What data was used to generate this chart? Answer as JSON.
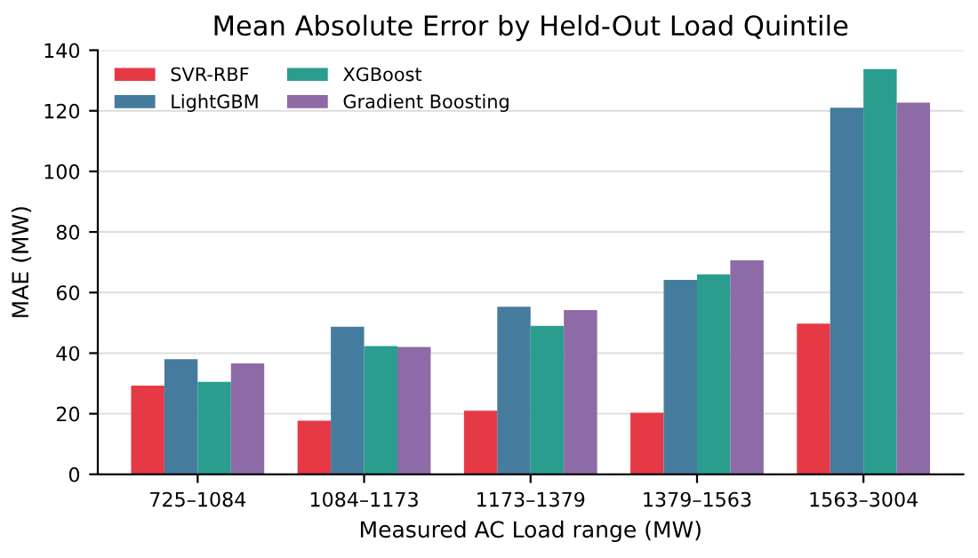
{
  "chart_data": {
    "type": "bar",
    "title": "Mean Absolute Error by Held-Out Load Quintile",
    "xlabel": "Measured AC Load range (MW)",
    "ylabel": "MAE (MW)",
    "categories": [
      "725–1084",
      "1084–1173",
      "1173–1379",
      "1379–1563",
      "1563–3004"
    ],
    "series": [
      {
        "name": "SVR-RBF",
        "color": "#e63946",
        "values": [
          29.3,
          17.7,
          21,
          20.3,
          49.7
        ]
      },
      {
        "name": "LightGBM",
        "color": "#457b9d",
        "values": [
          38,
          48.7,
          55.3,
          64.2,
          121
        ]
      },
      {
        "name": "XGBoost",
        "color": "#2a9d8f",
        "values": [
          30.5,
          42.3,
          49,
          66,
          133.8
        ]
      },
      {
        "name": "Gradient Boosting",
        "color": "#8e6aa6",
        "values": [
          36.6,
          42,
          54.2,
          70.6,
          122.7
        ]
      }
    ],
    "ylim": [
      0,
      140
    ],
    "yticks": [
      0,
      20,
      40,
      60,
      80,
      100,
      120,
      140
    ],
    "grid": "y",
    "legend": "top left"
  }
}
